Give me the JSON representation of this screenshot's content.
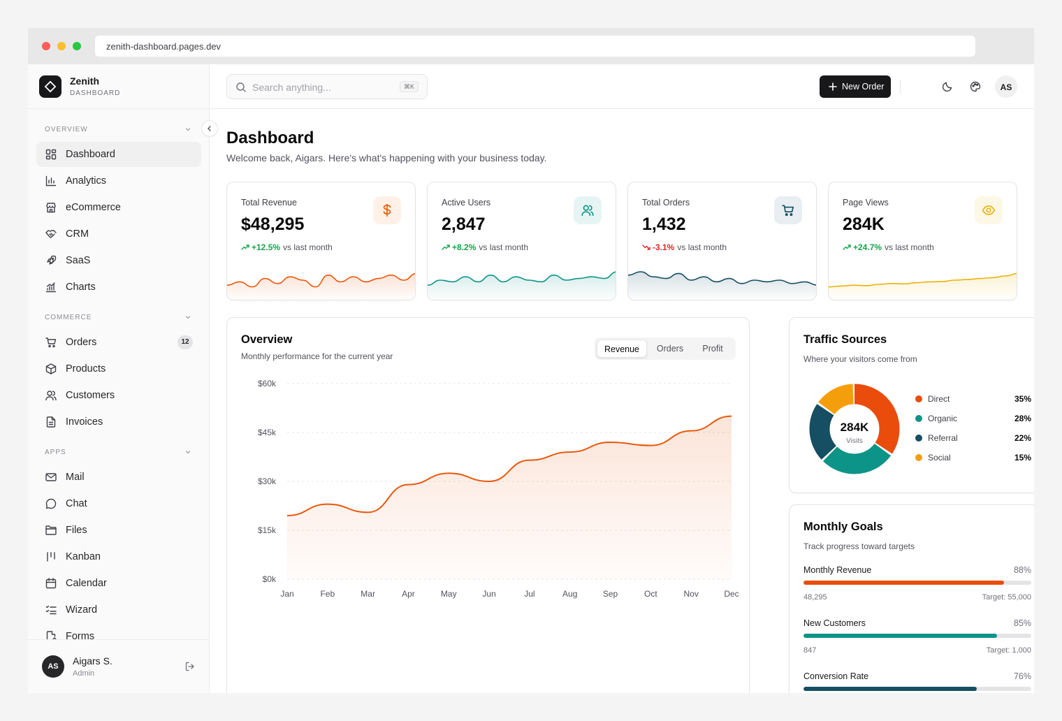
{
  "browser": {
    "url": "zenith-dashboard.pages.dev",
    "dots": [
      "#ff5f57",
      "#febc2e",
      "#28c840"
    ]
  },
  "brand": {
    "name": "Zenith",
    "subtitle": "DASHBOARD"
  },
  "sidebar": {
    "sections": [
      {
        "title": "OVERVIEW",
        "items": [
          {
            "label": "Dashboard",
            "icon": "layout-grid-icon",
            "active": true
          },
          {
            "label": "Analytics",
            "icon": "bar-chart-icon"
          },
          {
            "label": "eCommerce",
            "icon": "store-icon"
          },
          {
            "label": "CRM",
            "icon": "handshake-icon"
          },
          {
            "label": "SaaS",
            "icon": "rocket-icon"
          },
          {
            "label": "Charts",
            "icon": "chart-bars-icon"
          }
        ]
      },
      {
        "title": "COMMERCE",
        "items": [
          {
            "label": "Orders",
            "icon": "cart-icon",
            "badge": "12"
          },
          {
            "label": "Products",
            "icon": "box-icon"
          },
          {
            "label": "Customers",
            "icon": "users-icon"
          },
          {
            "label": "Invoices",
            "icon": "file-text-icon"
          }
        ]
      },
      {
        "title": "APPS",
        "items": [
          {
            "label": "Mail",
            "icon": "mail-icon"
          },
          {
            "label": "Chat",
            "icon": "chat-icon"
          },
          {
            "label": "Files",
            "icon": "folder-icon"
          },
          {
            "label": "Kanban",
            "icon": "kanban-icon"
          },
          {
            "label": "Calendar",
            "icon": "calendar-icon"
          },
          {
            "label": "Wizard",
            "icon": "list-checks-icon"
          },
          {
            "label": "Forms",
            "icon": "form-icon"
          }
        ]
      }
    ]
  },
  "user": {
    "initials": "AS",
    "name": "Aigars S.",
    "role": "Admin"
  },
  "header": {
    "search_placeholder": "Search anything...",
    "search_shortcut": "⌘K",
    "new_order_label": "New Order",
    "avatar_initials": "AS"
  },
  "page": {
    "title": "Dashboard",
    "subtitle": "Welcome back, Aigars. Here's what's happening with your business today."
  },
  "kpis": [
    {
      "label": "Total Revenue",
      "value": "$48,295",
      "delta": "+12.5%",
      "direction": "up",
      "note": "vs last month",
      "icon": "dollar-icon",
      "color": "#ea580c",
      "icon_bg": "#fff1e8",
      "spark": [
        8,
        6,
        9,
        4,
        7,
        3,
        5,
        9,
        2,
        6,
        3,
        6,
        4,
        2,
        5,
        1
      ]
    },
    {
      "label": "Active Users",
      "value": "2,847",
      "delta": "+8.2%",
      "direction": "up",
      "note": "vs last month",
      "icon": "users-icon",
      "color": "#0d9488",
      "icon_bg": "#e6f5f3",
      "spark": [
        8,
        5,
        6,
        3,
        6,
        2,
        6,
        3,
        5,
        6,
        2,
        5,
        4,
        3,
        4,
        0
      ]
    },
    {
      "label": "Total Orders",
      "value": "1,432",
      "delta": "-3.1%",
      "direction": "down",
      "note": "vs last month",
      "icon": "cart-icon",
      "color": "#164e63",
      "icon_bg": "#e8eef1",
      "spark": [
        2,
        0,
        3,
        4,
        1,
        5,
        3,
        6,
        4,
        7,
        5,
        6,
        5,
        7,
        6,
        8
      ]
    },
    {
      "label": "Page Views",
      "value": "284K",
      "delta": "+24.7%",
      "direction": "up",
      "note": "vs last month",
      "icon": "eye-icon",
      "color": "#eab308",
      "icon_bg": "#fdf8e6",
      "spark": [
        9,
        8.5,
        8,
        8.3,
        7.5,
        7,
        7.2,
        6.5,
        6,
        5.8,
        5,
        4.6,
        4,
        3.5,
        2.5,
        1
      ]
    }
  ],
  "overview": {
    "title": "Overview",
    "subtitle": "Monthly performance for the current year",
    "tabs": [
      {
        "label": "Revenue",
        "active": true
      },
      {
        "label": "Orders"
      },
      {
        "label": "Profit"
      }
    ]
  },
  "chart_data": {
    "type": "area",
    "title": "Overview",
    "subtitle": "Monthly performance for the current year",
    "categories": [
      "Jan",
      "Feb",
      "Mar",
      "Apr",
      "May",
      "Jun",
      "Jul",
      "Aug",
      "Sep",
      "Oct",
      "Nov",
      "Dec"
    ],
    "series": [
      {
        "name": "Revenue",
        "values": [
          19500,
          23000,
          20500,
          29000,
          32500,
          30000,
          36500,
          39000,
          42000,
          41000,
          45500,
          50000
        ]
      }
    ],
    "ylim": [
      0,
      60000
    ],
    "yticks": [
      "$0k",
      "$15k",
      "$30k",
      "$45k",
      "$60k"
    ],
    "grid": true,
    "color": "#ea580c"
  },
  "traffic": {
    "title": "Traffic Sources",
    "subtitle": "Where your visitors come from",
    "center_value": "284K",
    "center_label": "Visits",
    "sources": [
      {
        "name": "Direct",
        "pct": "35%",
        "value": 35,
        "color": "#ea4c0c"
      },
      {
        "name": "Organic",
        "pct": "28%",
        "value": 28,
        "color": "#0d9488"
      },
      {
        "name": "Referral",
        "pct": "22%",
        "value": 22,
        "color": "#164e63"
      },
      {
        "name": "Social",
        "pct": "15%",
        "value": 15,
        "color": "#f59e0b"
      }
    ]
  },
  "goals": {
    "title": "Monthly Goals",
    "subtitle": "Track progress toward targets",
    "items": [
      {
        "name": "Monthly Revenue",
        "pct": "88%",
        "value": 0.88,
        "current": "48,295",
        "target": "Target: 55,000",
        "color": "#ea4c0c"
      },
      {
        "name": "New Customers",
        "pct": "85%",
        "value": 0.85,
        "current": "847",
        "target": "Target: 1,000",
        "color": "#0d9488"
      },
      {
        "name": "Conversion Rate",
        "pct": "76%",
        "value": 0.76,
        "color": "#164e63"
      }
    ]
  }
}
